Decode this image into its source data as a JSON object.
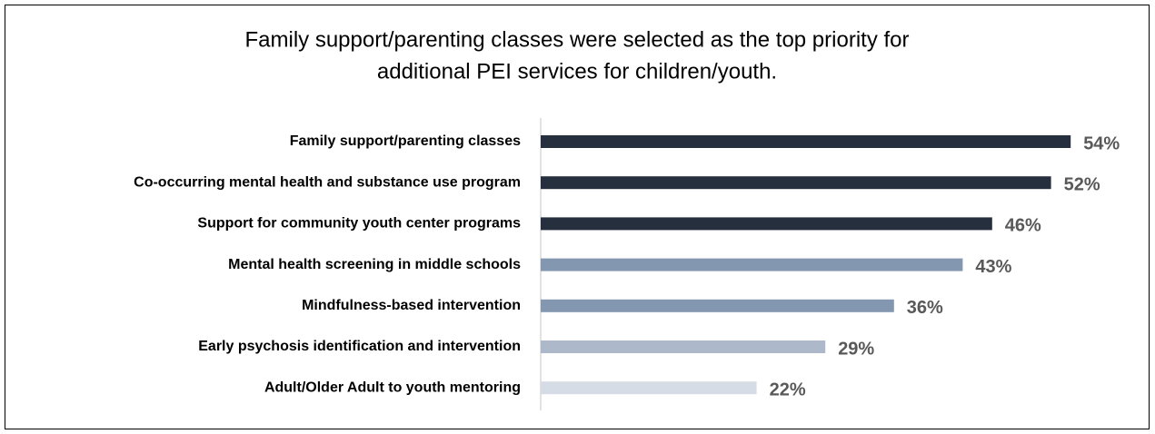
{
  "chart_data": {
    "type": "bar",
    "orientation": "horizontal",
    "title": [
      "Family support/parenting classes were selected as the top priority for",
      "additional PEI services for children/youth."
    ],
    "categories": [
      "Family support/parenting classes",
      "Co-occurring mental health and substance use program",
      "Support for community youth center programs",
      "Mental health screening in middle schools",
      "Mindfulness-based intervention",
      "Early psychosis identification and intervention",
      "Adult/Older Adult to youth mentoring"
    ],
    "values": [
      54,
      52,
      46,
      43,
      36,
      29,
      22
    ],
    "value_labels": [
      "54%",
      "52%",
      "46%",
      "43%",
      "36%",
      "29%",
      "22%"
    ],
    "colors": [
      "#262f3d",
      "#262f3d",
      "#262f3d",
      "#8497b0",
      "#8497b0",
      "#adb9ca",
      "#d6dce5"
    ]
  }
}
